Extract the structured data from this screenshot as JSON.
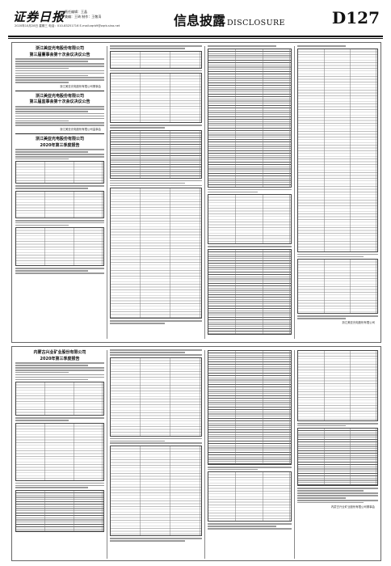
{
  "masthead": {
    "logo": "证券日报",
    "meta_line1": "责任编辑：王晶",
    "meta_line2": "美编：王琦 制作：王敬涛",
    "meta_line3": "2020年10月28日 星期三 电话：010-83251716 E-mail:zqrb9@zqrb.sina.net",
    "section_cn": "信息披露",
    "section_en": "DISCLOSURE",
    "page_number": "D127"
  },
  "articles": [
    {
      "company": "浙江美亚光电股份有限公司",
      "title": "第三届董事会第十次会议决议公告",
      "footer": "浙江美亚光电股份有限公司董事会"
    },
    {
      "company": "浙江美亚光电股份有限公司",
      "title": "第三届监事会第十次会议决议公告",
      "footer": "浙江美亚光电股份有限公司监事会"
    },
    {
      "company": "浙江美亚光电股份有限公司",
      "title": "2020年第三季度报告",
      "footer": "浙江美亚光电股份有限公司"
    },
    {
      "company": "内蒙古兴业矿业股份有限公司",
      "title": "2020年第三季度报告",
      "footer": "内蒙古兴业矿业股份有限公司董事会"
    }
  ]
}
